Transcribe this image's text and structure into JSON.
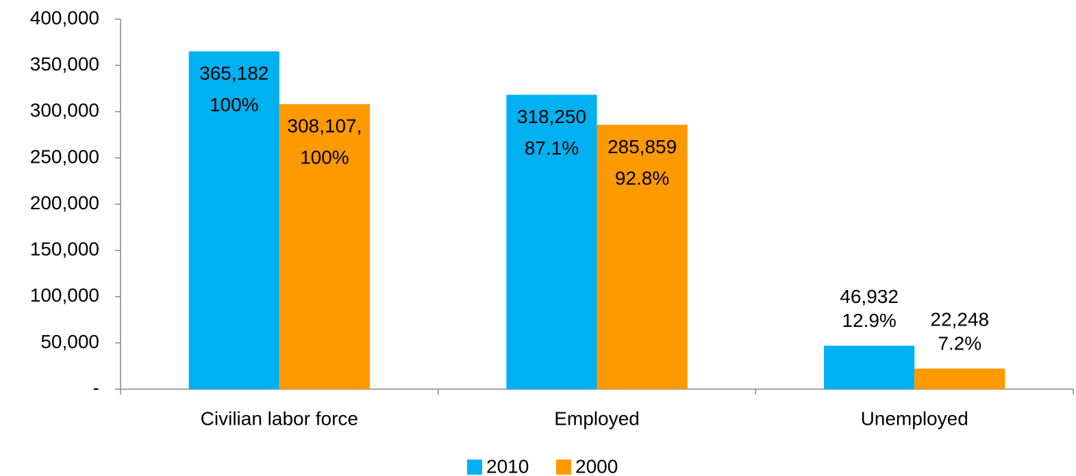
{
  "chart_data": {
    "type": "bar",
    "categories": [
      "Civilian labor force",
      "Employed",
      "Unemployed"
    ],
    "series": [
      {
        "name": "2010",
        "color": "#00b0f0",
        "values": [
          365182,
          318250,
          46932
        ],
        "value_labels": [
          "365,182",
          "318,250",
          "46,932"
        ],
        "percent_labels": [
          "100%",
          "87.1%",
          "12.9%"
        ]
      },
      {
        "name": "2000",
        "color": "#ff9900",
        "values": [
          308107,
          285859,
          22248
        ],
        "value_labels": [
          "308,107,",
          "285,859",
          "22,248"
        ],
        "percent_labels": [
          "100%",
          "92.8%",
          "7.2%"
        ]
      }
    ],
    "ylim": [
      0,
      400000
    ],
    "yticks": [
      {
        "value": 0,
        "label": "-"
      },
      {
        "value": 50000,
        "label": "50,000"
      },
      {
        "value": 100000,
        "label": "100,000"
      },
      {
        "value": 150000,
        "label": "150,000"
      },
      {
        "value": 200000,
        "label": "200,000"
      },
      {
        "value": 250000,
        "label": "250,000"
      },
      {
        "value": 300000,
        "label": "300,000"
      },
      {
        "value": 350000,
        "label": "350,000"
      },
      {
        "value": 400000,
        "label": "400,000"
      }
    ],
    "grid": false,
    "legend": "bottom"
  }
}
